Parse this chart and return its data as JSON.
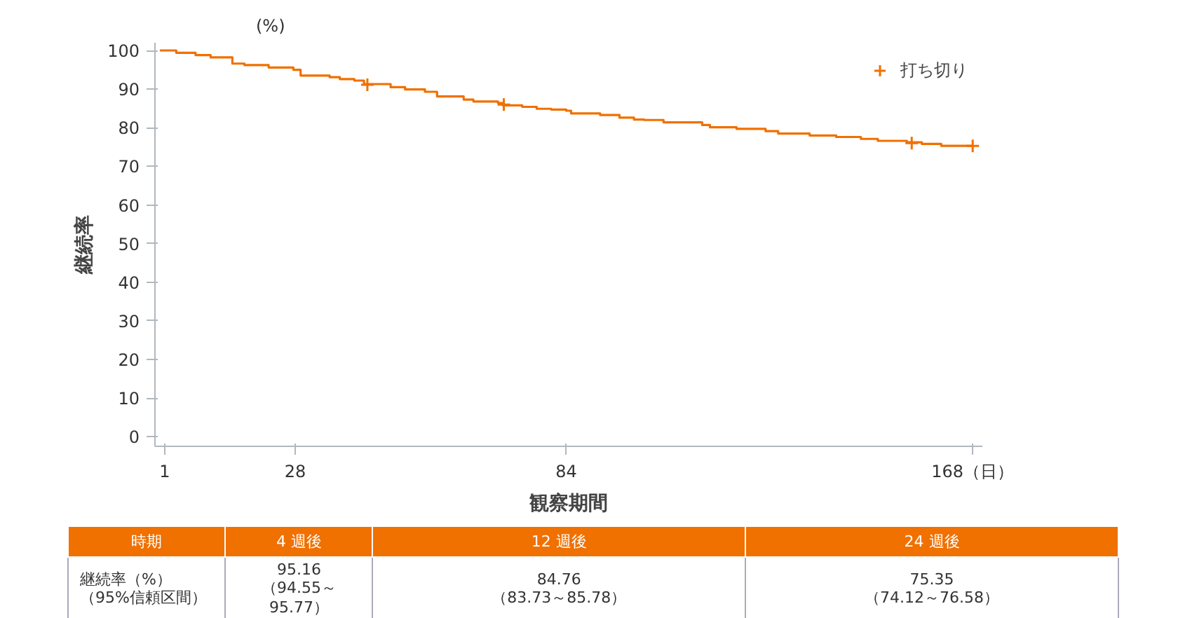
{
  "chart_data": {
    "type": "step",
    "xlabel": "観察期間",
    "ylabel": "継続率",
    "xlim": [
      -1,
      170
    ],
    "ylim": [
      -2.5,
      102
    ],
    "xticks": [
      1,
      28,
      84,
      {
        "value": 168,
        "label": "168（日）"
      }
    ],
    "yticks": [
      0,
      10,
      20,
      30,
      40,
      50,
      60,
      70,
      80,
      90,
      100
    ],
    "grid": false,
    "legend": "top right",
    "series": [
      {
        "color": "#f07000",
        "x": [
          0,
          3.4,
          7.4,
          10.5,
          15.0,
          17.5,
          22.5,
          27.6,
          29.1,
          35.1,
          37.2,
          40.2,
          42.2,
          47.7,
          50.7,
          54.8,
          57.3,
          62.8,
          64.8,
          69.9,
          70.9,
          74.9,
          77.9,
          80.9,
          84.0,
          85.0,
          91.0,
          95.0,
          98.0,
          100.1,
          104.1,
          112.1,
          113.7,
          119.2,
          125.2,
          127.8,
          134.3,
          139.8,
          144.9,
          148.4,
          154.4,
          157.5,
          161.5,
          168
        ],
        "values": [
          100,
          99.4,
          98.8,
          98.2,
          96.6,
          96.2,
          95.6,
          95.0,
          93.5,
          93.1,
          92.6,
          92.2,
          91.3,
          90.5,
          89.9,
          89.3,
          88.1,
          87.3,
          86.8,
          86.4,
          85.8,
          85.4,
          84.9,
          84.7,
          84.4,
          83.7,
          83.3,
          82.6,
          82.1,
          82.0,
          81.4,
          80.7,
          80.1,
          79.7,
          79.1,
          78.5,
          78.0,
          77.6,
          77.1,
          76.6,
          76.2,
          75.8,
          75.3,
          75.3
        ]
      },
      {
        "type": "scatter",
        "name": "打ち切り",
        "color": "#f07000",
        "marker": "cross",
        "x": [
          42.9,
          71.1,
          155.4,
          168
        ],
        "values": [
          91.1,
          86.0,
          76.0,
          75.3
        ]
      }
    ],
    "annotations": [
      "(%)",
      "時期",
      "4 週後",
      "12 週後",
      "24 週後",
      "継続率（%）",
      "（95%信頼区間）",
      "95.16",
      "（94.55～95.77）",
      "84.76",
      "（83.73～85.78）",
      "75.35",
      "（74.12～76.58）"
    ]
  }
}
